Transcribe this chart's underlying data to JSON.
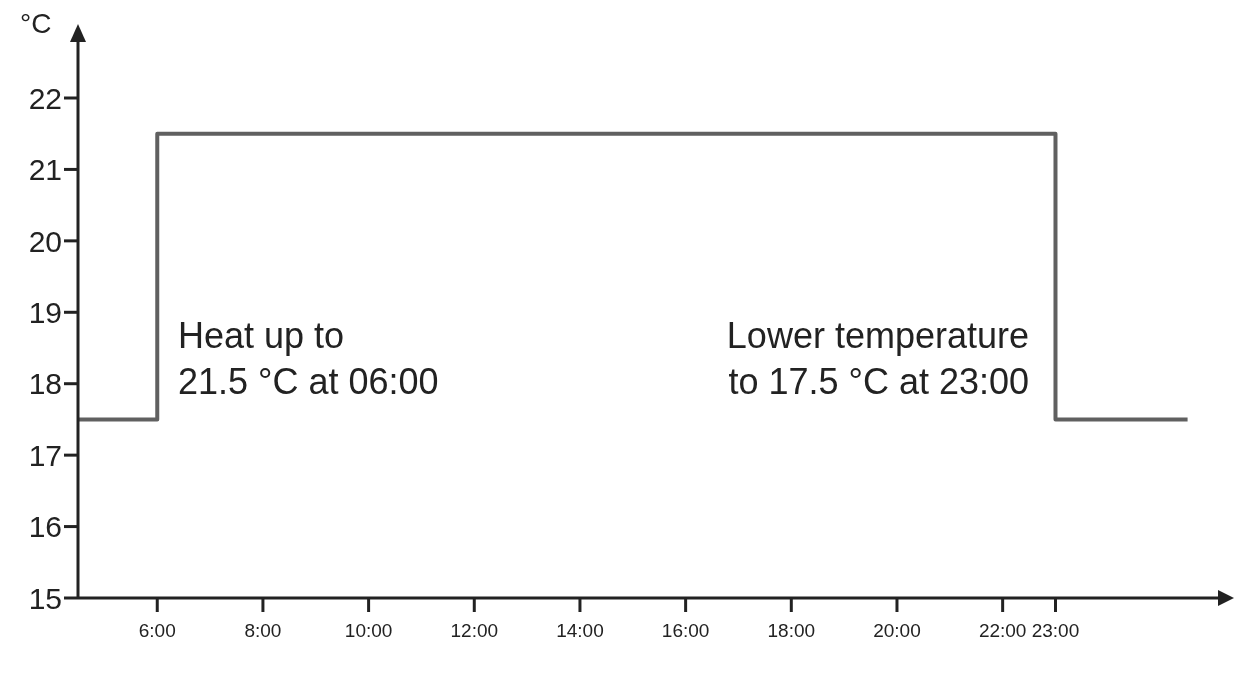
{
  "chart_data": {
    "type": "step",
    "ylabel": "°C",
    "x": [
      4.5,
      6,
      23,
      25.5
    ],
    "series": [
      {
        "color": "#606060",
        "values": [
          17.5,
          21.5,
          17.5,
          17.5
        ]
      }
    ],
    "xlim": [
      4.5,
      26
    ],
    "xticks": [
      {
        "value": 6,
        "label": "6:00"
      },
      {
        "value": 8,
        "label": "8:00"
      },
      {
        "value": 10,
        "label": "10:00"
      },
      {
        "value": 12,
        "label": "12:00"
      },
      {
        "value": 14,
        "label": "14:00"
      },
      {
        "value": 16,
        "label": "16:00"
      },
      {
        "value": 18,
        "label": "18:00"
      },
      {
        "value": 20,
        "label": "20:00"
      },
      {
        "value": 22,
        "label": "22:00"
      },
      {
        "value": 23,
        "label": "23:00"
      }
    ],
    "ylim": [
      15,
      22.7
    ],
    "yticks": [
      15,
      16,
      17,
      18,
      19,
      20,
      21,
      22
    ],
    "annotations": [
      "Heat up to\n21.5 °C at 06:00",
      "Lower temperature\nto 17.5 °C at 23:00"
    ],
    "grid": false,
    "legend": false,
    "marker": "none",
    "line_style": "solid"
  }
}
